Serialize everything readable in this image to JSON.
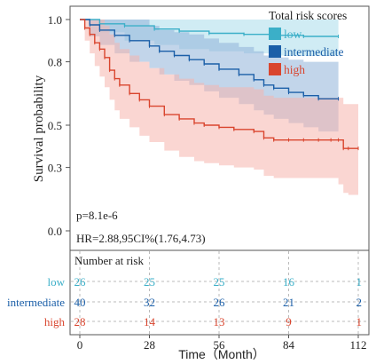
{
  "chart_data": {
    "type": "line",
    "subtype": "kaplan-meier survival curves with confidence bands and risk table",
    "xlabel": "Time（Month）",
    "ylabel": "Survival probability",
    "xlim": [
      0,
      112
    ],
    "ylim": [
      0,
      1
    ],
    "x_ticks": [
      "0",
      "28",
      "56",
      "84",
      "112"
    ],
    "y_ticks": [
      "0.0",
      "0.3",
      "0.5",
      "0.8",
      "1.0"
    ],
    "legend": {
      "title": "Total risk scores",
      "position": "top-right"
    },
    "annotations": {
      "pvalue": "p=8.1e-6",
      "hr": "HR=2.88,95CI%(1.76,4.73)"
    },
    "series": [
      {
        "name": "low",
        "color": "#3BAFC8",
        "band_color": "#A9DCEB",
        "x": [
          0,
          8,
          18,
          30,
          40,
          52,
          66,
          78,
          90,
          104
        ],
        "y": [
          1.0,
          0.98,
          0.97,
          0.955,
          0.945,
          0.935,
          0.93,
          0.925,
          0.92,
          0.92
        ],
        "lower": [
          1.0,
          0.94,
          0.9,
          0.88,
          0.86,
          0.85,
          0.84,
          0.83,
          0.83,
          0.83
        ],
        "upper": [
          1.0,
          1.0,
          1.0,
          1.0,
          1.0,
          1.0,
          1.0,
          1.0,
          1.0,
          1.0
        ]
      },
      {
        "name": "intermediate",
        "color": "#1B5FA8",
        "band_color": "#8FB3D9",
        "x": [
          0,
          4,
          8,
          14,
          20,
          28,
          32,
          38,
          44,
          50,
          56,
          64,
          70,
          74,
          78,
          84,
          90,
          96,
          104
        ],
        "y": [
          1.0,
          0.975,
          0.95,
          0.925,
          0.9,
          0.875,
          0.85,
          0.83,
          0.81,
          0.79,
          0.765,
          0.74,
          0.715,
          0.69,
          0.675,
          0.655,
          0.64,
          0.625,
          0.625
        ],
        "lower": [
          1.0,
          0.92,
          0.88,
          0.84,
          0.8,
          0.77,
          0.74,
          0.71,
          0.69,
          0.66,
          0.63,
          0.6,
          0.57,
          0.55,
          0.53,
          0.51,
          0.49,
          0.47,
          0.47
        ],
        "upper": [
          1.0,
          1.0,
          1.0,
          1.0,
          1.0,
          0.97,
          0.95,
          0.94,
          0.93,
          0.91,
          0.89,
          0.87,
          0.85,
          0.83,
          0.82,
          0.81,
          0.8,
          0.8,
          0.8
        ]
      },
      {
        "name": "high",
        "color": "#D9452E",
        "band_color": "#F6B4AD",
        "x": [
          0,
          2,
          4,
          6,
          8,
          10,
          12,
          14,
          16,
          20,
          24,
          28,
          34,
          40,
          46,
          50,
          56,
          62,
          70,
          74,
          78,
          84,
          90,
          96,
          101,
          104,
          106,
          108,
          112
        ],
        "y": [
          1.0,
          0.96,
          0.93,
          0.89,
          0.86,
          0.82,
          0.76,
          0.72,
          0.69,
          0.65,
          0.62,
          0.59,
          0.55,
          0.53,
          0.51,
          0.5,
          0.49,
          0.48,
          0.47,
          0.44,
          0.43,
          0.43,
          0.43,
          0.43,
          0.43,
          0.43,
          0.39,
          0.39,
          0.39
        ],
        "lower": [
          1.0,
          0.9,
          0.84,
          0.78,
          0.73,
          0.68,
          0.62,
          0.57,
          0.53,
          0.49,
          0.45,
          0.42,
          0.38,
          0.35,
          0.33,
          0.32,
          0.31,
          0.3,
          0.29,
          0.26,
          0.25,
          0.25,
          0.25,
          0.25,
          0.25,
          0.22,
          0.18,
          0.17,
          0.17
        ],
        "upper": [
          1.0,
          1.0,
          1.0,
          1.0,
          1.0,
          0.97,
          0.93,
          0.89,
          0.86,
          0.83,
          0.8,
          0.77,
          0.74,
          0.72,
          0.7,
          0.69,
          0.68,
          0.68,
          0.67,
          0.64,
          0.63,
          0.63,
          0.63,
          0.63,
          0.63,
          0.63,
          0.6,
          0.6,
          0.6
        ]
      }
    ],
    "risk_table": {
      "title": "Number at risk",
      "times": [
        0,
        28,
        56,
        84,
        112
      ],
      "rows": [
        {
          "name": "low",
          "color": "#3BAFC8",
          "counts": [
            "26",
            "25",
            "25",
            "16",
            "1"
          ]
        },
        {
          "name": "intermediate",
          "color": "#1B5FA8",
          "counts": [
            "40",
            "32",
            "26",
            "21",
            "2"
          ]
        },
        {
          "name": "high",
          "color": "#D9452E",
          "counts": [
            "28",
            "14",
            "13",
            "9",
            "1"
          ]
        }
      ]
    }
  }
}
